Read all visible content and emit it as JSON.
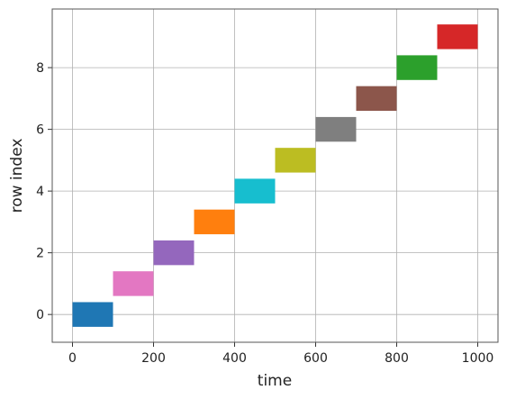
{
  "chart_data": {
    "type": "broken_barh",
    "xlabel": "time",
    "ylabel": "row index",
    "rows": [
      0,
      1,
      2,
      3,
      4,
      5,
      6,
      7,
      8,
      9
    ],
    "starts": [
      0,
      100,
      200,
      300,
      400,
      500,
      600,
      700,
      800,
      900
    ],
    "widths": [
      100,
      100,
      100,
      100,
      100,
      100,
      100,
      100,
      100,
      100
    ],
    "bar_height": 0.8,
    "colors": [
      "#1f77b4",
      "#e377c2",
      "#9467bd",
      "#ff7f0e",
      "#17becf",
      "#bcbd22",
      "#7f7f7f",
      "#8c564b",
      "#2ca02c",
      "#d62728"
    ],
    "xlim": [
      -50,
      1050
    ],
    "xticks": [
      0,
      200,
      400,
      600,
      800,
      1000
    ],
    "ylim": [
      -0.9,
      9.9
    ],
    "yticks": [
      0,
      2,
      4,
      6,
      8
    ],
    "grid": true
  }
}
